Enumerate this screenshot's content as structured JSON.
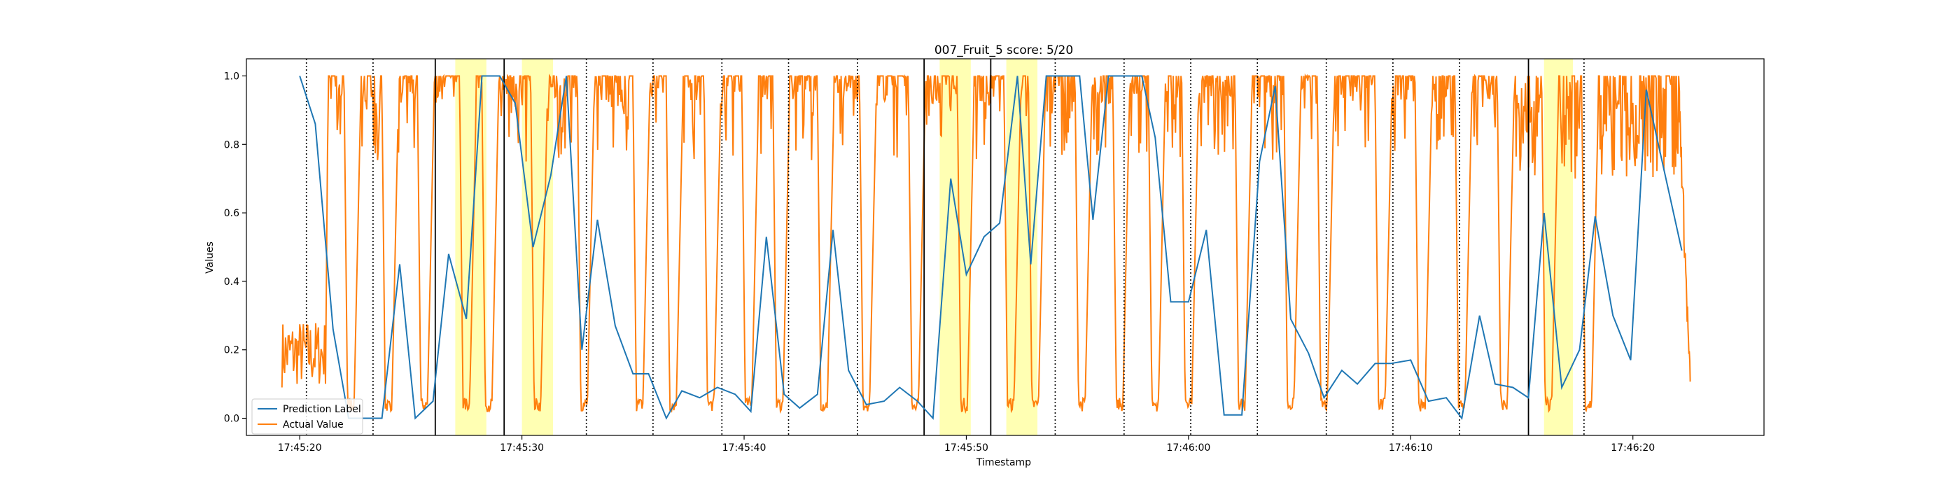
{
  "chart_data": {
    "type": "line",
    "title": "007_Fruit_5 score: 5/20",
    "xlabel": "Timestamp",
    "ylabel": "Values",
    "xlim": [
      -2.4,
      65.9
    ],
    "ylim": [
      -0.05,
      1.05
    ],
    "x_ticks": [
      {
        "value": 0,
        "label": "17:45:20"
      },
      {
        "value": 10,
        "label": "17:45:30"
      },
      {
        "value": 20,
        "label": "17:45:40"
      },
      {
        "value": 30,
        "label": "17:45:50"
      },
      {
        "value": 40,
        "label": "17:46:00"
      },
      {
        "value": 50,
        "label": "17:46:10"
      },
      {
        "value": 60,
        "label": "17:46:20"
      }
    ],
    "y_ticks": [
      0.0,
      0.2,
      0.4,
      0.6,
      0.8,
      1.0
    ],
    "y_tick_labels": [
      "0.0",
      "0.2",
      "0.4",
      "0.6",
      "0.8",
      "1.0"
    ],
    "grid": false,
    "legend_position": "lower-left",
    "series": [
      {
        "name": "Prediction Label",
        "color": "#1f77b4",
        "points": [
          [
            0.0,
            1.0
          ],
          [
            0.7,
            0.86
          ],
          [
            1.5,
            0.26
          ],
          [
            2.2,
            0.0
          ],
          [
            3.0,
            0.0
          ],
          [
            3.7,
            0.0
          ],
          [
            4.5,
            0.45
          ],
          [
            5.2,
            0.0
          ],
          [
            6.0,
            0.05
          ],
          [
            6.7,
            0.48
          ],
          [
            7.5,
            0.29
          ],
          [
            8.2,
            1.0
          ],
          [
            9.0,
            1.0
          ],
          [
            9.7,
            0.92
          ],
          [
            10.5,
            0.5
          ],
          [
            11.3,
            0.71
          ],
          [
            12.0,
            1.0
          ],
          [
            12.7,
            0.2
          ],
          [
            13.4,
            0.58
          ],
          [
            14.2,
            0.27
          ],
          [
            15.0,
            0.13
          ],
          [
            15.7,
            0.13
          ],
          [
            16.5,
            0.0
          ],
          [
            17.2,
            0.08
          ],
          [
            18.0,
            0.06
          ],
          [
            18.8,
            0.09
          ],
          [
            19.6,
            0.07
          ],
          [
            20.3,
            0.02
          ],
          [
            21.0,
            0.53
          ],
          [
            21.8,
            0.07
          ],
          [
            22.5,
            0.03
          ],
          [
            23.3,
            0.07
          ],
          [
            24.0,
            0.55
          ],
          [
            24.7,
            0.14
          ],
          [
            25.5,
            0.04
          ],
          [
            26.3,
            0.05
          ],
          [
            27.0,
            0.09
          ],
          [
            27.8,
            0.05
          ],
          [
            28.5,
            0.0
          ],
          [
            29.3,
            0.7
          ],
          [
            30.0,
            0.42
          ],
          [
            30.8,
            0.53
          ],
          [
            31.5,
            0.57
          ],
          [
            32.3,
            1.0
          ],
          [
            32.9,
            0.45
          ],
          [
            33.6,
            1.0
          ],
          [
            34.3,
            1.0
          ],
          [
            35.1,
            1.0
          ],
          [
            35.7,
            0.58
          ],
          [
            36.4,
            1.0
          ],
          [
            37.1,
            1.0
          ],
          [
            37.9,
            1.0
          ],
          [
            38.5,
            0.82
          ],
          [
            39.2,
            0.34
          ],
          [
            40.0,
            0.34
          ],
          [
            40.8,
            0.55
          ],
          [
            41.6,
            0.01
          ],
          [
            42.4,
            0.01
          ],
          [
            43.2,
            0.75
          ],
          [
            43.9,
            0.97
          ],
          [
            44.6,
            0.29
          ],
          [
            45.4,
            0.19
          ],
          [
            46.1,
            0.06
          ],
          [
            46.9,
            0.14
          ],
          [
            47.6,
            0.1
          ],
          [
            48.4,
            0.16
          ],
          [
            49.1,
            0.16
          ],
          [
            50.0,
            0.17
          ],
          [
            50.8,
            0.05
          ],
          [
            51.6,
            0.06
          ],
          [
            52.3,
            0.0
          ],
          [
            53.1,
            0.3
          ],
          [
            53.8,
            0.1
          ],
          [
            54.6,
            0.09
          ],
          [
            55.3,
            0.06
          ],
          [
            56.0,
            0.6
          ],
          [
            56.8,
            0.09
          ],
          [
            57.6,
            0.2
          ],
          [
            58.3,
            0.59
          ],
          [
            59.1,
            0.3
          ],
          [
            59.9,
            0.17
          ],
          [
            60.6,
            0.96
          ],
          [
            62.2,
            0.49
          ]
        ]
      },
      {
        "name": "Actual Value",
        "color": "#ff7f0e",
        "description": "Sensor signal near 1.0 with frequent dips toward 0.85-0.95 and periodic deep drops to about 0.0-0.05; ranges 0.09-0.29 at the start (x about -0.8 to 1.2) and tails off from about 0.9 to 0.05 at the end (x about 62.1 to 62.6).",
        "dip_centers": [
          2.3,
          4.0,
          5.6,
          7.5,
          8.5,
          10.7,
          12.8,
          15.3,
          16.8,
          18.5,
          20.2,
          21.6,
          23.6,
          25.5,
          27.7,
          29.9,
          32.0,
          33.1,
          35.2,
          36.9,
          38.5,
          40.0,
          42.4,
          44.6,
          46.1,
          48.7,
          50.5,
          52.3,
          54.2,
          56.2,
          58.0
        ],
        "drop_starts": [
          2.0,
          3.7,
          5.3,
          7.2,
          8.2,
          10.4,
          12.5,
          15.0,
          16.5,
          18.2,
          19.9,
          21.3,
          23.3,
          25.2,
          27.4,
          29.6,
          31.7,
          32.8,
          34.9,
          36.6,
          38.2,
          39.7,
          42.1,
          44.3,
          45.8,
          48.4,
          50.2,
          52.0,
          53.9,
          55.9,
          57.7
        ]
      }
    ],
    "vertical_lines": {
      "dotted": [
        0.3,
        3.3,
        12.9,
        15.9,
        19.0,
        22.0,
        25.1,
        34.0,
        37.1,
        40.1,
        43.1,
        46.2,
        49.2,
        52.2,
        57.8
      ],
      "solid": [
        6.1,
        9.2,
        28.1,
        31.1,
        55.3
      ]
    },
    "highlight_spans": [
      [
        7.0,
        8.4
      ],
      [
        10.0,
        11.4
      ],
      [
        28.8,
        30.2
      ],
      [
        31.8,
        33.2
      ],
      [
        56.0,
        57.3
      ]
    ],
    "highlight_color": "#ffff99"
  }
}
